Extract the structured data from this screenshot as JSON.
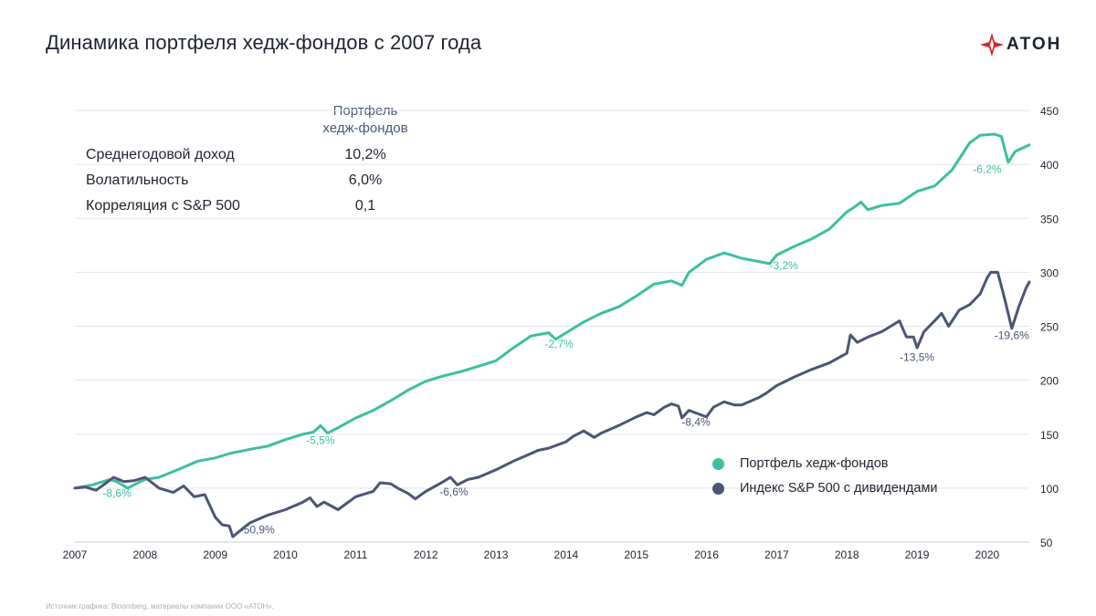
{
  "title": "Динамика портфеля хедж-фондов с 2007 года",
  "logo": {
    "text": "АТОН",
    "icon": "aton-star-icon",
    "color": "#d1262e"
  },
  "source": "Источник графика: Bloomberg, материалы компании ООО «АТОН».",
  "stats": {
    "header": [
      "Портфель",
      "хедж-фондов"
    ],
    "rows": [
      {
        "label": "Среднегодовой доход",
        "value": "10,2%"
      },
      {
        "label": "Волатильность",
        "value": "6,0%"
      },
      {
        "label": "Корреляция с S&P 500",
        "value": "0,1"
      }
    ]
  },
  "colors": {
    "hedge": "#3dbfa1",
    "sp": "#4a5673",
    "grid": "#e3e5e8",
    "text": "#1e2430"
  },
  "chart_data": {
    "type": "line",
    "title": "Динамика портфеля хедж-фондов с 2007 года",
    "xlabel": "",
    "ylabel": "",
    "xlim": [
      2007.0,
      2020.6
    ],
    "ylim": [
      50,
      450
    ],
    "y_ticks": [
      "450",
      "400",
      "350",
      "300",
      "250",
      "200",
      "150",
      "100",
      "50"
    ],
    "x_ticks": [
      "2007",
      "2008",
      "2009",
      "2010",
      "2011",
      "2012",
      "2013",
      "2014",
      "2015",
      "2016",
      "2017",
      "2018",
      "2019",
      "2020"
    ],
    "grid": true,
    "legend": {
      "position": "bottom-right",
      "entries": [
        "Портфель хедж-фондов",
        "Индекс S&P 500 с дивидендами"
      ]
    },
    "series": [
      {
        "name": "Портфель хедж-фондов",
        "color": "#3dbfa1",
        "points": [
          [
            2007.0,
            100
          ],
          [
            2007.25,
            103
          ],
          [
            2007.5,
            108
          ],
          [
            2007.6,
            106
          ],
          [
            2007.75,
            100
          ],
          [
            2007.9,
            105
          ],
          [
            2008.0,
            108
          ],
          [
            2008.2,
            110
          ],
          [
            2008.5,
            118
          ],
          [
            2008.75,
            125
          ],
          [
            2009.0,
            128
          ],
          [
            2009.2,
            132
          ],
          [
            2009.5,
            136
          ],
          [
            2009.75,
            139
          ],
          [
            2010.0,
            145
          ],
          [
            2010.25,
            150
          ],
          [
            2010.4,
            152
          ],
          [
            2010.5,
            158
          ],
          [
            2010.6,
            151
          ],
          [
            2010.75,
            156
          ],
          [
            2011.0,
            165
          ],
          [
            2011.25,
            172
          ],
          [
            2011.5,
            181
          ],
          [
            2011.75,
            191
          ],
          [
            2012.0,
            199
          ],
          [
            2012.25,
            204
          ],
          [
            2012.5,
            208
          ],
          [
            2012.75,
            213
          ],
          [
            2013.0,
            218
          ],
          [
            2013.25,
            230
          ],
          [
            2013.5,
            241
          ],
          [
            2013.75,
            244
          ],
          [
            2013.85,
            238
          ],
          [
            2014.0,
            244
          ],
          [
            2014.25,
            254
          ],
          [
            2014.5,
            262
          ],
          [
            2014.75,
            268
          ],
          [
            2015.0,
            278
          ],
          [
            2015.25,
            289
          ],
          [
            2015.5,
            292
          ],
          [
            2015.65,
            288
          ],
          [
            2015.75,
            300
          ],
          [
            2016.0,
            312
          ],
          [
            2016.25,
            318
          ],
          [
            2016.5,
            313
          ],
          [
            2016.75,
            310
          ],
          [
            2016.9,
            308
          ],
          [
            2017.0,
            316
          ],
          [
            2017.25,
            324
          ],
          [
            2017.5,
            331
          ],
          [
            2017.75,
            340
          ],
          [
            2018.0,
            356
          ],
          [
            2018.1,
            360
          ],
          [
            2018.2,
            365
          ],
          [
            2018.3,
            358
          ],
          [
            2018.5,
            362
          ],
          [
            2018.75,
            364
          ],
          [
            2019.0,
            375
          ],
          [
            2019.25,
            380
          ],
          [
            2019.5,
            395
          ],
          [
            2019.75,
            420
          ],
          [
            2019.9,
            427
          ],
          [
            2020.1,
            428
          ],
          [
            2020.2,
            426
          ],
          [
            2020.3,
            402
          ],
          [
            2020.4,
            412
          ],
          [
            2020.5,
            415
          ],
          [
            2020.6,
            418
          ]
        ]
      },
      {
        "name": "Индекс S&P 500 с дивидендами",
        "color": "#4a5673",
        "points": [
          [
            2007.0,
            100
          ],
          [
            2007.15,
            101
          ],
          [
            2007.3,
            98
          ],
          [
            2007.45,
            105
          ],
          [
            2007.55,
            110
          ],
          [
            2007.7,
            106
          ],
          [
            2007.85,
            107
          ],
          [
            2008.0,
            110
          ],
          [
            2008.2,
            100
          ],
          [
            2008.4,
            96
          ],
          [
            2008.55,
            102
          ],
          [
            2008.7,
            92
          ],
          [
            2008.85,
            94
          ],
          [
            2009.0,
            73
          ],
          [
            2009.1,
            66
          ],
          [
            2009.2,
            65
          ],
          [
            2009.25,
            55
          ],
          [
            2009.4,
            63
          ],
          [
            2009.5,
            68
          ],
          [
            2009.75,
            75
          ],
          [
            2010.0,
            80
          ],
          [
            2010.25,
            87
          ],
          [
            2010.35,
            91
          ],
          [
            2010.45,
            83
          ],
          [
            2010.55,
            87
          ],
          [
            2010.75,
            80
          ],
          [
            2011.0,
            92
          ],
          [
            2011.25,
            97
          ],
          [
            2011.35,
            105
          ],
          [
            2011.5,
            104
          ],
          [
            2011.6,
            100
          ],
          [
            2011.75,
            95
          ],
          [
            2011.85,
            90
          ],
          [
            2012.0,
            97
          ],
          [
            2012.25,
            106
          ],
          [
            2012.35,
            110
          ],
          [
            2012.45,
            103
          ],
          [
            2012.6,
            108
          ],
          [
            2012.75,
            110
          ],
          [
            2013.0,
            117
          ],
          [
            2013.25,
            125
          ],
          [
            2013.5,
            132
          ],
          [
            2013.6,
            135
          ],
          [
            2013.75,
            137
          ],
          [
            2014.0,
            143
          ],
          [
            2014.1,
            148
          ],
          [
            2014.25,
            153
          ],
          [
            2014.4,
            147
          ],
          [
            2014.5,
            151
          ],
          [
            2014.75,
            158
          ],
          [
            2015.0,
            166
          ],
          [
            2015.15,
            170
          ],
          [
            2015.25,
            168
          ],
          [
            2015.4,
            175
          ],
          [
            2015.5,
            178
          ],
          [
            2015.6,
            176
          ],
          [
            2015.65,
            165
          ],
          [
            2015.75,
            172
          ],
          [
            2016.0,
            166
          ],
          [
            2016.1,
            175
          ],
          [
            2016.25,
            180
          ],
          [
            2016.4,
            177
          ],
          [
            2016.5,
            177
          ],
          [
            2016.75,
            184
          ],
          [
            2016.85,
            188
          ],
          [
            2017.0,
            195
          ],
          [
            2017.25,
            203
          ],
          [
            2017.5,
            210
          ],
          [
            2017.75,
            216
          ],
          [
            2018.0,
            225
          ],
          [
            2018.05,
            242
          ],
          [
            2018.15,
            235
          ],
          [
            2018.3,
            240
          ],
          [
            2018.5,
            245
          ],
          [
            2018.75,
            255
          ],
          [
            2018.85,
            240
          ],
          [
            2018.95,
            240
          ],
          [
            2019.0,
            230
          ],
          [
            2019.1,
            245
          ],
          [
            2019.25,
            255
          ],
          [
            2019.35,
            262
          ],
          [
            2019.45,
            250
          ],
          [
            2019.6,
            265
          ],
          [
            2019.75,
            270
          ],
          [
            2019.9,
            280
          ],
          [
            2020.0,
            295
          ],
          [
            2020.05,
            300
          ],
          [
            2020.15,
            300
          ],
          [
            2020.25,
            275
          ],
          [
            2020.35,
            248
          ],
          [
            2020.45,
            268
          ],
          [
            2020.55,
            285
          ],
          [
            2020.6,
            291
          ]
        ]
      }
    ],
    "annotations": [
      {
        "text": "-8,6%",
        "series": "Портфель хедж-фондов",
        "x": 2007.6,
        "y": 92
      },
      {
        "text": "-5,5%",
        "series": "Портфель хедж-фондов",
        "x": 2010.5,
        "y": 141
      },
      {
        "text": "-2,7%",
        "series": "Портфель хедж-фондов",
        "x": 2013.9,
        "y": 230
      },
      {
        "text": "-3,2%",
        "series": "Портфель хедж-фондов",
        "x": 2017.1,
        "y": 303
      },
      {
        "text": "-6,2%",
        "series": "Портфель хедж-фондов",
        "x": 2020.0,
        "y": 392
      },
      {
        "text": "-50,9%",
        "series": "Индекс S&P 500 с дивидендами",
        "x": 2009.6,
        "y": 58
      },
      {
        "text": "-6,6%",
        "series": "Индекс S&P 500 с дивидендами",
        "x": 2012.4,
        "y": 93
      },
      {
        "text": "-8,4%",
        "series": "Индекс S&P 500 с дивидендами",
        "x": 2015.85,
        "y": 158
      },
      {
        "text": "-13,5%",
        "series": "Индекс S&P 500 с дивидендами",
        "x": 2019.0,
        "y": 218
      },
      {
        "text": "-19,6%",
        "series": "Индекс S&P 500 с дивидендами",
        "x": 2020.35,
        "y": 238
      }
    ]
  }
}
